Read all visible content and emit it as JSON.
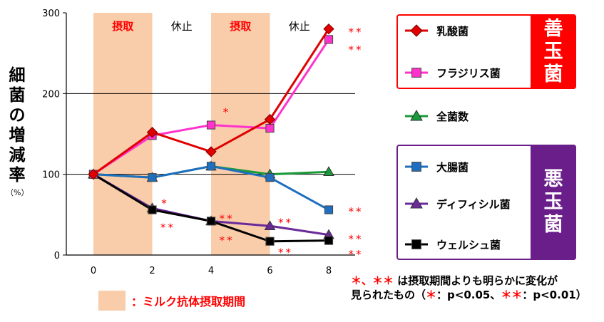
{
  "chart_data": {
    "type": "line",
    "title": "",
    "ylabel": "細菌の増減率",
    "ylabel_unit": "（%）",
    "x": [
      0,
      2,
      4,
      6,
      8
    ],
    "xlim": [
      0,
      8
    ],
    "ylim": [
      0,
      300
    ],
    "x_ticks": [
      "0",
      "2",
      "4",
      "6",
      "8"
    ],
    "y_ticks": [
      "0",
      "100",
      "200",
      "300"
    ],
    "grid": "horizontal lines at 100, 200",
    "periods": [
      {
        "label": "摂取",
        "from": 0,
        "to": 2,
        "shaded": true
      },
      {
        "label": "休止",
        "from": 2,
        "to": 4,
        "shaded": false
      },
      {
        "label": "摂取",
        "from": 4,
        "to": 6,
        "shaded": true
      },
      {
        "label": "休止",
        "from": 6,
        "to": 8,
        "shaded": false
      }
    ],
    "series": [
      {
        "name": "乳酸菌",
        "color": "#e00000",
        "marker": "diamond",
        "values": [
          100,
          152,
          128,
          168,
          280
        ]
      },
      {
        "name": "フラジリス菌",
        "color": "#ff33cc",
        "marker": "square",
        "values": [
          100,
          148,
          161,
          157,
          267
        ]
      },
      {
        "name": "全菌数",
        "color": "#1a9a3a",
        "marker": "triangle",
        "values": [
          100,
          96,
          110,
          100,
          103
        ]
      },
      {
        "name": "大腸菌",
        "color": "#1e6fc0",
        "marker": "square",
        "values": [
          100,
          96,
          110,
          96,
          56
        ]
      },
      {
        "name": "ディフィシル菌",
        "color": "#6a2a9a",
        "marker": "triangle",
        "values": [
          100,
          58,
          42,
          36,
          25
        ]
      },
      {
        "name": "ウェルシュ菌",
        "color": "#000000",
        "marker": "square",
        "values": [
          100,
          56,
          42,
          17,
          18
        ]
      }
    ],
    "annotations": [
      {
        "text": "*",
        "x": 2,
        "y": 64
      },
      {
        "text": "**",
        "x": 2,
        "y": 34
      },
      {
        "text": "*",
        "x": 4,
        "y": 177
      },
      {
        "text": "**",
        "x": 4,
        "y": 45
      },
      {
        "text": "**",
        "x": 4,
        "y": 18
      },
      {
        "text": "**",
        "x": 6,
        "y": 40
      },
      {
        "text": "**",
        "x": 6,
        "y": 3
      },
      {
        "text": "**",
        "x": 8,
        "y": 276
      },
      {
        "text": "**",
        "x": 8,
        "y": 254
      },
      {
        "text": "**",
        "x": 8,
        "y": 54
      },
      {
        "text": "**",
        "x": 8,
        "y": 20
      },
      {
        "text": "**",
        "x": 8,
        "y": 1
      }
    ]
  },
  "legend": {
    "good_group": "善玉菌",
    "bad_group": "悪玉菌"
  },
  "note": {
    "line1_marks": "＊、＊＊",
    "line1_text": "は摂取期間よりも明らかに変化が",
    "line2_text_a": "見られたもの（",
    "line2_mark_a": "＊",
    "line2_text_b": "：p<0.05、",
    "line2_mark_b": "＊＊",
    "line2_text_c": "：p<0.01）"
  },
  "intake_key": {
    "label": "：ミルク抗体摂取期間",
    "color": "#f9ccaa"
  },
  "colors": {
    "shade": "#f9ccaa",
    "significance": "#ff0000",
    "good": "#ff0000",
    "bad": "#6a1e8a"
  }
}
